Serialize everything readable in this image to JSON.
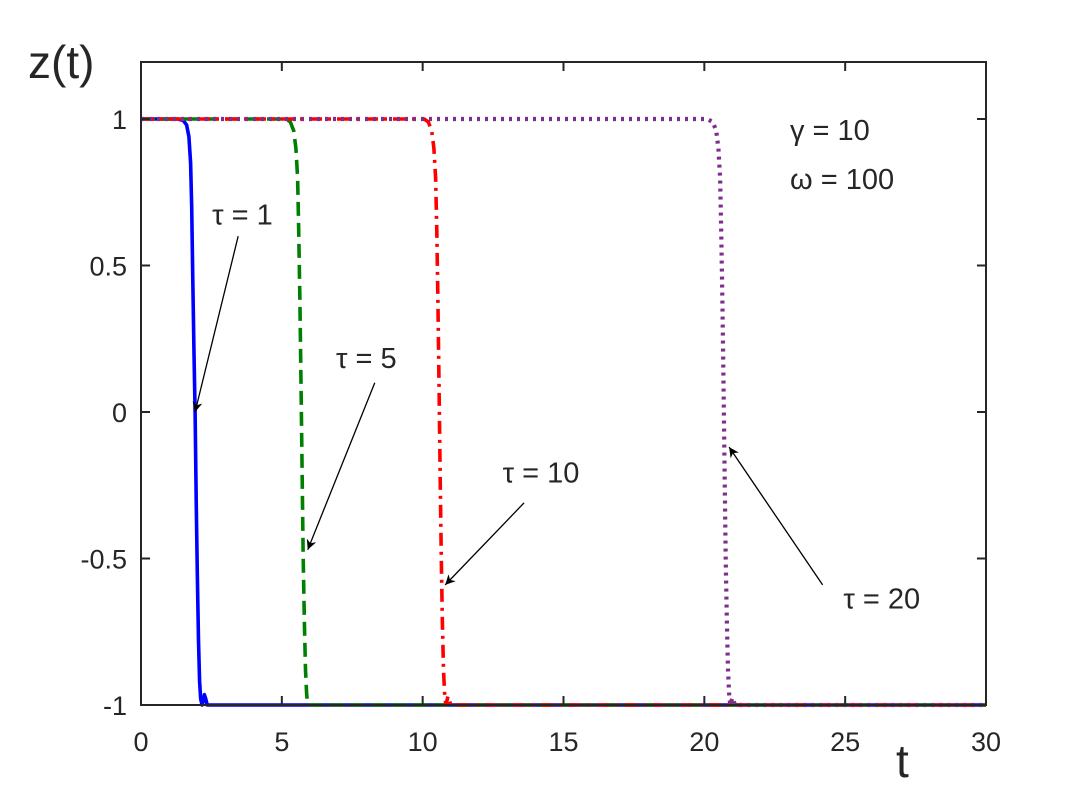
{
  "chart_data": {
    "type": "line",
    "title": "",
    "xlabel": "t",
    "ylabel": "z(t)",
    "xlim": [
      0,
      30
    ],
    "ylim": [
      -1,
      1
    ],
    "xticks": [
      0,
      5,
      10,
      15,
      20,
      25,
      30
    ],
    "xtick_labels": [
      "0",
      "5",
      "10",
      "15",
      "20",
      "25",
      "30"
    ],
    "yticks": [
      -1,
      -0.5,
      0,
      0.5,
      1
    ],
    "ytick_labels": [
      "-1",
      "-0.5",
      "0",
      "0.5",
      "1"
    ],
    "grid": false,
    "legend": "none",
    "params_text": [
      "γ = 10",
      "ω = 100"
    ],
    "series": [
      {
        "label": "τ = 1",
        "color": "#0000ff",
        "style": "solid",
        "x": [
          0,
          1.3,
          1.5,
          1.62,
          1.7,
          1.76,
          1.8,
          1.84,
          1.88,
          1.92,
          1.96,
          2.0,
          2.04,
          2.08,
          2.12,
          2.17,
          2.2,
          2.25,
          2.3,
          2.35,
          2.4,
          2.6,
          30
        ],
        "y": [
          1,
          1,
          0.995,
          0.98,
          0.94,
          0.85,
          0.7,
          0.45,
          0.2,
          0,
          -0.3,
          -0.55,
          -0.78,
          -0.92,
          -0.98,
          -1,
          -0.99,
          -0.965,
          -0.98,
          -1,
          -1,
          -1,
          -1
        ]
      },
      {
        "label": "τ = 5",
        "color": "#008000",
        "style": "dashed",
        "x": [
          0,
          5.15,
          5.3,
          5.42,
          5.5,
          5.56,
          5.6,
          5.64,
          5.68,
          5.72,
          5.76,
          5.8,
          5.84,
          5.88,
          5.92,
          6.0,
          6.2,
          30
        ],
        "y": [
          1,
          1,
          0.99,
          0.96,
          0.9,
          0.8,
          0.62,
          0.38,
          0.1,
          -0.2,
          -0.5,
          -0.72,
          -0.88,
          -0.96,
          -1,
          -1,
          -1,
          -1
        ]
      },
      {
        "label": "τ = 10",
        "color": "#ff0000",
        "style": "dashdot",
        "x": [
          0,
          10.05,
          10.2,
          10.32,
          10.4,
          10.46,
          10.5,
          10.54,
          10.58,
          10.62,
          10.66,
          10.7,
          10.74,
          10.78,
          10.82,
          10.85,
          10.9,
          10.95,
          11.0,
          11.05,
          11.2,
          30
        ],
        "y": [
          1,
          1,
          0.99,
          0.96,
          0.9,
          0.8,
          0.62,
          0.38,
          0.1,
          -0.2,
          -0.5,
          -0.72,
          -0.88,
          -0.96,
          -1,
          -0.99,
          -0.97,
          -0.985,
          -1,
          -1,
          -1,
          -1
        ]
      },
      {
        "label": "τ = 20",
        "color": "#7e2f8e",
        "style": "dotted",
        "x": [
          0,
          20.1,
          20.3,
          20.42,
          20.5,
          20.56,
          20.6,
          20.64,
          20.68,
          20.72,
          20.76,
          20.8,
          20.84,
          20.88,
          20.92,
          20.95,
          21.0,
          21.05,
          21.1,
          21.2,
          30
        ],
        "y": [
          1,
          1,
          0.99,
          0.96,
          0.9,
          0.8,
          0.62,
          0.38,
          0.1,
          -0.2,
          -0.5,
          -0.72,
          -0.88,
          -0.96,
          -1,
          -0.99,
          -0.975,
          -0.99,
          -1,
          -1,
          -1
        ]
      }
    ],
    "annotations": [
      {
        "text": "τ = 1",
        "x": 3.6,
        "y": 0.64,
        "arrow_from": [
          3.45,
          0.6
        ],
        "arrow_to": [
          1.92,
          0.0
        ]
      },
      {
        "text": "τ = 5",
        "x": 8.0,
        "y": 0.15,
        "arrow_from": [
          8.3,
          0.1
        ],
        "arrow_to": [
          5.92,
          -0.47
        ]
      },
      {
        "text": "τ = 10",
        "x": 14.2,
        "y": -0.24,
        "arrow_from": [
          13.6,
          -0.31
        ],
        "arrow_to": [
          10.8,
          -0.59
        ]
      },
      {
        "text": "τ = 20",
        "x": 26.3,
        "y": -0.67,
        "arrow_from": [
          24.2,
          -0.59
        ],
        "arrow_to": [
          20.88,
          -0.12
        ]
      }
    ]
  }
}
